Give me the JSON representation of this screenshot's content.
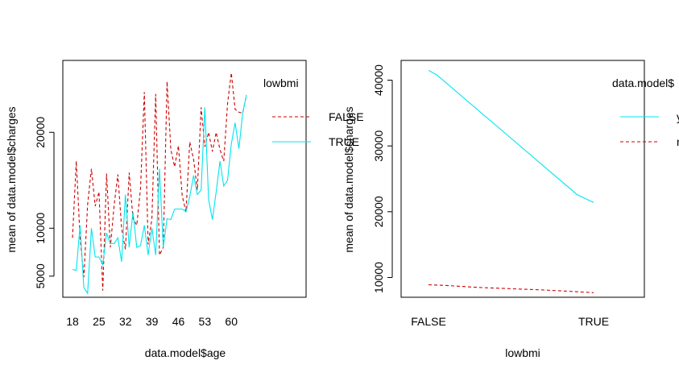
{
  "chart_data": [
    {
      "type": "line",
      "title": "",
      "xlabel": "data.model$age",
      "ylabel": "mean of  data.model$charges",
      "x_tick_labels": [
        "18",
        "25",
        "32",
        "39",
        "46",
        "53",
        "60"
      ],
      "x_ticks": [
        18,
        25,
        32,
        39,
        46,
        53,
        60
      ],
      "y_tick_labels": [
        "5000",
        "10000",
        "20000"
      ],
      "y_ticks": [
        5000,
        10000,
        20000
      ],
      "x": [
        18,
        19,
        20,
        21,
        22,
        23,
        24,
        25,
        26,
        27,
        28,
        29,
        30,
        31,
        32,
        33,
        34,
        35,
        36,
        37,
        38,
        39,
        40,
        41,
        42,
        43,
        44,
        45,
        46,
        47,
        48,
        49,
        50,
        51,
        52,
        53,
        54,
        55,
        56,
        57,
        58,
        59,
        60,
        61,
        62,
        63,
        64
      ],
      "xlim": [
        18,
        64
      ],
      "ylim": [
        2800,
        27500
      ],
      "grid": false,
      "legend_title": "lowbmi",
      "legend_position": "right",
      "series": [
        {
          "name": "FALSE",
          "color": "#cd0000",
          "dash": "dashed",
          "values": [
            9000,
            17000,
            9000,
            4900,
            12500,
            16200,
            12300,
            13800,
            3500,
            15700,
            8000,
            12400,
            15600,
            10000,
            7800,
            15800,
            11000,
            10300,
            14200,
            24200,
            8300,
            11000,
            24000,
            7200,
            8000,
            25300,
            18200,
            16400,
            18600,
            13400,
            11700,
            19000,
            17200,
            14000,
            22600,
            18500,
            20000,
            18000,
            20000,
            18200,
            17000,
            23000,
            26200,
            22400,
            22100,
            22000,
            23900
          ]
        },
        {
          "name": "TRUE",
          "color": "#00e5ee",
          "dash": "solid",
          "values": [
            5700,
            5600,
            10300,
            3800,
            3200,
            10000,
            7000,
            7000,
            6200,
            9500,
            8400,
            8400,
            9000,
            6500,
            13500,
            8000,
            11700,
            8000,
            8200,
            10300,
            7200,
            10000,
            7200,
            16200,
            8000,
            11000,
            10900,
            12000,
            12000,
            12000,
            11700,
            13300,
            15500,
            13500,
            14000,
            22600,
            13000,
            10900,
            13800,
            17000,
            14400,
            15000,
            18800,
            21000,
            18300,
            22000,
            23900
          ]
        }
      ]
    },
    {
      "type": "line",
      "title": "",
      "xlabel": "lowbmi",
      "ylabel": "mean of  data.model$charges",
      "categories": [
        "FALSE",
        "TRUE"
      ],
      "y_tick_labels": [
        "10000",
        "20000",
        "30000",
        "40000"
      ],
      "y_ticks": [
        10000,
        20000,
        30000,
        40000
      ],
      "ylim": [
        7000,
        43000
      ],
      "grid": false,
      "legend_title": "data.model$",
      "legend_position": "right",
      "series": [
        {
          "name": "y",
          "color": "#00e5ee",
          "dash": "solid",
          "x": [
            1,
            1.05,
            1.9,
            2
          ],
          "values": [
            41500,
            40800,
            22600,
            21400
          ]
        },
        {
          "name": "n",
          "color": "#cd0000",
          "dash": "dashed",
          "x": [
            1,
            1.1,
            1.3,
            1.5,
            1.7,
            1.85,
            2
          ],
          "values": [
            8900,
            8800,
            8500,
            8300,
            8100,
            7900,
            7700
          ]
        }
      ]
    }
  ]
}
